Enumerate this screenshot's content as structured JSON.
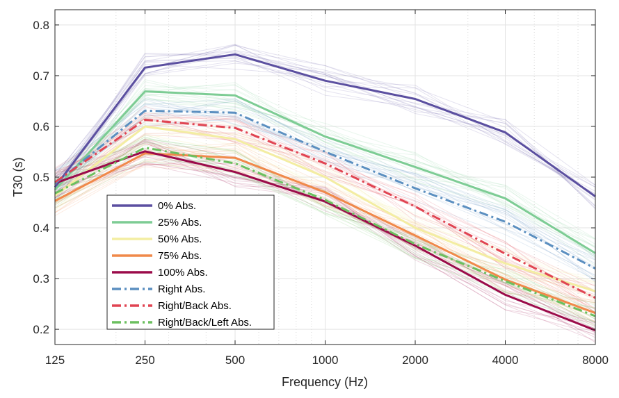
{
  "chart_data": {
    "type": "line",
    "xlabel": "Frequency (Hz)",
    "ylabel": "T30 (s)",
    "x": [
      125,
      250,
      500,
      1000,
      2000,
      4000,
      8000
    ],
    "x_tick_labels": [
      "125",
      "250",
      "500",
      "1000",
      "2000",
      "4000",
      "8000"
    ],
    "x_scale": "log",
    "xlim": [
      125,
      8000
    ],
    "ylim": [
      0.17,
      0.83
    ],
    "y_ticks": [
      0.2,
      0.3,
      0.4,
      0.5,
      0.6,
      0.7,
      0.8
    ],
    "y_tick_labels": [
      "0.2",
      "0.3",
      "0.4",
      "0.5",
      "0.6",
      "0.7",
      "0.8"
    ],
    "grid": true,
    "legend_position": "lower-left",
    "series": [
      {
        "name": "0% Abs.",
        "values": [
          0.48,
          0.716,
          0.742,
          0.69,
          0.654,
          0.588,
          0.462
        ],
        "color": "#5b4fa0",
        "dash": "solid"
      },
      {
        "name": "25% Abs.",
        "values": [
          0.475,
          0.669,
          0.661,
          0.58,
          0.52,
          0.458,
          0.35
        ],
        "color": "#7dcc94",
        "dash": "solid"
      },
      {
        "name": "50% Abs.",
        "values": [
          0.463,
          0.6,
          0.575,
          0.5,
          0.4,
          0.33,
          0.275
        ],
        "color": "#f3eda2",
        "dash": "solid"
      },
      {
        "name": "75% Abs.",
        "values": [
          0.453,
          0.547,
          0.538,
          0.47,
          0.385,
          0.298,
          0.232
        ],
        "color": "#f0894a",
        "dash": "solid"
      },
      {
        "name": "100% Abs.",
        "values": [
          0.488,
          0.551,
          0.51,
          0.452,
          0.365,
          0.268,
          0.198
        ],
        "color": "#9b0b4a",
        "dash": "solid"
      },
      {
        "name": "Right Abs.",
        "values": [
          0.487,
          0.631,
          0.627,
          0.55,
          0.478,
          0.412,
          0.32
        ],
        "color": "#5b8fc0",
        "dash": "dashdot"
      },
      {
        "name": "Right/Back Abs.",
        "values": [
          0.49,
          0.613,
          0.597,
          0.527,
          0.442,
          0.349,
          0.262
        ],
        "color": "#e04452",
        "dash": "dashdot"
      },
      {
        "name": "Right/Back/Left Abs.",
        "values": [
          0.468,
          0.558,
          0.527,
          0.455,
          0.368,
          0.295,
          0.226
        ],
        "color": "#6bbf5f",
        "dash": "dashdot"
      }
    ]
  }
}
